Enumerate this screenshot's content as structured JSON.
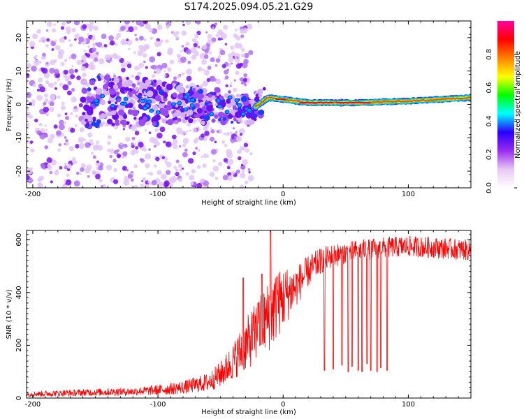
{
  "title": "S174.2025.094.05.21.G29",
  "chart_data": [
    {
      "type": "heatmap",
      "xlabel": "Height of straight line (km)",
      "ylabel": "Frequency (Hz)",
      "xlim": [
        -205,
        150
      ],
      "ylim": [
        -25,
        25
      ],
      "x_ticks": [
        -200,
        -100,
        0,
        100
      ],
      "y_ticks": [
        -20,
        -10,
        0,
        10,
        20
      ],
      "colorbar": {
        "label": "Normalized spectral amplitude",
        "range": [
          0.0,
          1.0
        ],
        "ticks": [
          "0.0",
          "0.2",
          "0.4",
          "0.6",
          "0.8"
        ],
        "colors": [
          "#ffffff",
          "#e8c8f4",
          "#9a2cf0",
          "#2a00ff",
          "#00ffff",
          "#00ff00",
          "#ffff00",
          "#ff8000",
          "#ff0000",
          "#ff00a0"
        ]
      },
      "description_points": {
        "signal_center_hz": [
          [
            -150,
            1.5
          ],
          [
            -100,
            0.5
          ],
          [
            -50,
            -0.5
          ],
          [
            -25,
            -1.5
          ],
          [
            -12,
            2
          ],
          [
            0,
            1.5
          ],
          [
            20,
            0.5
          ],
          [
            60,
            0.5
          ],
          [
            100,
            1
          ],
          [
            150,
            2
          ]
        ],
        "noise_region_x": [
          -205,
          -30
        ]
      }
    },
    {
      "type": "line",
      "xlabel": "Height of straight line (km)",
      "ylabel": "SNR (10 * v/v)",
      "xlim": [
        -205,
        150
      ],
      "ylim": [
        0,
        635
      ],
      "x_ticks": [
        -200,
        -100,
        0,
        100
      ],
      "y_ticks": [
        0,
        200,
        400,
        600
      ],
      "series": [
        {
          "color": "#ff0000",
          "envelope": {
            "x": [
              -205,
              -180,
              -150,
              -120,
              -100,
              -80,
              -60,
              -50,
              -40,
              -30,
              -20,
              -10,
              0,
              10,
              20,
              30,
              40,
              60,
              80,
              100,
              120,
              150
            ],
            "mean": [
              15,
              18,
              22,
              25,
              30,
              40,
              60,
              90,
              140,
              200,
              260,
              320,
              380,
              420,
              480,
              520,
              540,
              560,
              570,
              575,
              570,
              560
            ],
            "spread": [
              10,
              12,
              14,
              15,
              20,
              25,
              35,
              50,
              70,
              100,
              120,
              140,
              120,
              80,
              60,
              50,
              45,
              40,
              40,
              40,
              40,
              40
            ]
          },
          "dropouts": [
            {
              "x": 33,
              "min": 105
            },
            {
              "x": 40,
              "min": 110
            },
            {
              "x": 47,
              "min": 125
            },
            {
              "x": 52,
              "min": 100
            },
            {
              "x": 55,
              "min": 120
            },
            {
              "x": 60,
              "min": 105
            },
            {
              "x": 63,
              "min": 100
            },
            {
              "x": 67,
              "min": 130
            },
            {
              "x": 70,
              "min": 105
            },
            {
              "x": 75,
              "min": 100
            },
            {
              "x": 78,
              "min": 115
            },
            {
              "x": 83,
              "min": 105
            }
          ],
          "spikes": [
            {
              "x": -32,
              "max": 455
            },
            {
              "x": -20,
              "max": 360
            },
            {
              "x": -17,
              "max": 470
            },
            {
              "x": -10,
              "max": 635
            },
            {
              "x": -5,
              "max": 460
            }
          ]
        }
      ]
    }
  ]
}
